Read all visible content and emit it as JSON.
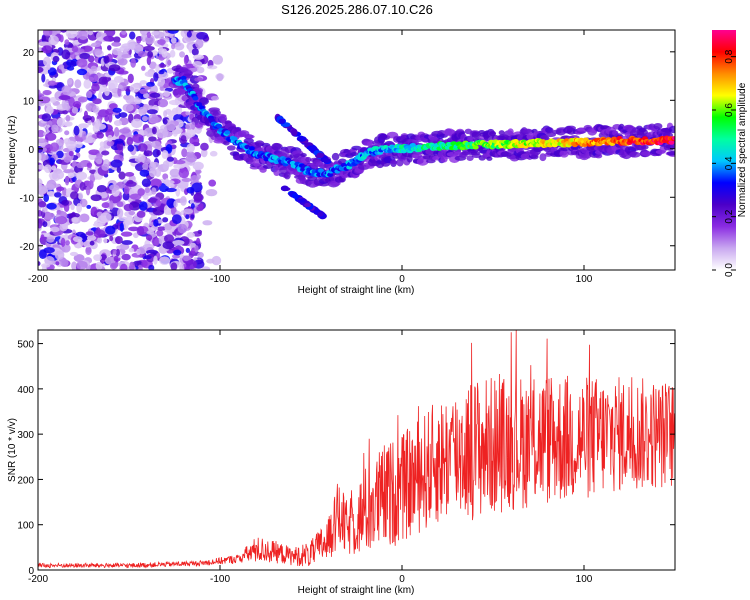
{
  "chart_data": [
    {
      "type": "heatmap",
      "title": "S126.2025.286.07.10.C26",
      "xlabel": "Height of straight line (km)",
      "ylabel": "Frequency (Hz)",
      "xlim": [
        -200,
        150
      ],
      "ylim": [
        -25,
        24.5
      ],
      "xticks": [
        -200,
        -100,
        0,
        100
      ],
      "yticks": [
        -20,
        -10,
        0,
        10,
        20
      ],
      "colorbar": {
        "label": "Normalized spectral amplitude",
        "range": [
          0,
          0.9
        ],
        "ticks": [
          0.0,
          0.2,
          0.4,
          0.6,
          0.8
        ],
        "colormap": [
          "#ffffff",
          "#c9a8f0",
          "#8a2be2",
          "#4b00c8",
          "#0000ff",
          "#00c8ff",
          "#00ffa0",
          "#00ff00",
          "#ffff00",
          "#ff8c00",
          "#ff0000",
          "#ff0090"
        ]
      },
      "ridge": {
        "description_free": true,
        "x": [
          -120,
          -110,
          -100,
          -90,
          -80,
          -70,
          -60,
          -50,
          -40,
          -35,
          -30,
          -20,
          -10,
          0,
          20,
          40,
          60,
          80,
          100,
          120,
          150
        ],
        "y": [
          14,
          8,
          4,
          1,
          -1,
          -2,
          -3,
          -5,
          -5,
          -4,
          -3.5,
          -1,
          0,
          0,
          0.5,
          0.8,
          1,
          1.2,
          1.4,
          1.6,
          1.8
        ]
      }
    },
    {
      "type": "line",
      "xlabel": "Height of straight line (km)",
      "ylabel": "SNR (10 * v/v)",
      "xlim": [
        -200,
        150
      ],
      "ylim": [
        0,
        530
      ],
      "xticks": [
        -200,
        -100,
        0,
        100
      ],
      "yticks": [
        0,
        100,
        200,
        300,
        400,
        500
      ],
      "color": "#ee2222",
      "envelope": {
        "x": [
          -200,
          -150,
          -110,
          -90,
          -80,
          -70,
          -60,
          -50,
          -40,
          -35,
          -30,
          -20,
          -10,
          0,
          10,
          20,
          30,
          40,
          60,
          80,
          100,
          120,
          150
        ],
        "mean": [
          10,
          10,
          15,
          25,
          45,
          40,
          30,
          35,
          70,
          120,
          90,
          130,
          160,
          180,
          210,
          240,
          260,
          270,
          280,
          290,
          290,
          300,
          300
        ],
        "amp": [
          5,
          5,
          6,
          10,
          30,
          25,
          20,
          30,
          50,
          80,
          60,
          100,
          120,
          120,
          130,
          140,
          150,
          160,
          150,
          150,
          140,
          130,
          120
        ]
      }
    }
  ]
}
